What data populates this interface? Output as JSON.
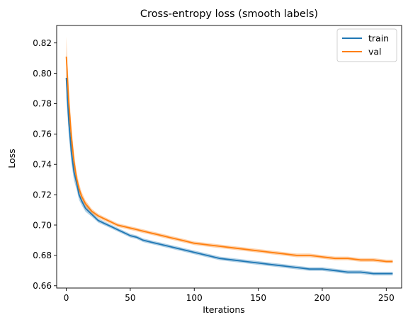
{
  "chart_data": {
    "type": "line",
    "title": "Cross-entropy loss (smooth labels)",
    "xlabel": "Iterations",
    "ylabel": "Loss",
    "xlim": [
      -7.5,
      262
    ],
    "ylim": [
      0.6585,
      0.8315
    ],
    "xticks": [
      0,
      50,
      100,
      150,
      200,
      250
    ],
    "yticks": [
      0.66,
      0.68,
      0.7,
      0.72,
      0.74,
      0.76,
      0.78,
      0.8,
      0.82
    ],
    "grid": false,
    "legend_position": "top-right",
    "series": [
      {
        "name": "train",
        "color": "#1f77b4",
        "band_opacity": 0.35,
        "x": [
          0,
          2,
          4,
          6,
          8,
          10,
          12,
          15,
          20,
          25,
          30,
          35,
          40,
          45,
          50,
          55,
          60,
          65,
          70,
          75,
          80,
          90,
          100,
          110,
          120,
          130,
          140,
          150,
          160,
          170,
          180,
          190,
          200,
          210,
          220,
          230,
          240,
          250,
          255
        ],
        "values": [
          0.797,
          0.768,
          0.748,
          0.735,
          0.728,
          0.72,
          0.716,
          0.711,
          0.707,
          0.703,
          0.701,
          0.699,
          0.697,
          0.695,
          0.693,
          0.692,
          0.69,
          0.689,
          0.688,
          0.687,
          0.686,
          0.684,
          0.682,
          0.68,
          0.678,
          0.677,
          0.676,
          0.675,
          0.674,
          0.673,
          0.672,
          0.671,
          0.671,
          0.67,
          0.669,
          0.669,
          0.668,
          0.668,
          0.668
        ]
      },
      {
        "name": "val",
        "color": "#ff7f0e",
        "band_opacity": 0.35,
        "x": [
          0,
          2,
          4,
          6,
          8,
          10,
          12,
          15,
          20,
          25,
          30,
          35,
          40,
          45,
          50,
          55,
          60,
          65,
          70,
          75,
          80,
          90,
          100,
          110,
          120,
          130,
          140,
          150,
          160,
          170,
          180,
          190,
          200,
          210,
          220,
          230,
          240,
          250,
          255
        ],
        "values": [
          0.811,
          0.78,
          0.758,
          0.742,
          0.731,
          0.724,
          0.719,
          0.714,
          0.709,
          0.706,
          0.704,
          0.702,
          0.7,
          0.699,
          0.698,
          0.697,
          0.696,
          0.695,
          0.694,
          0.693,
          0.692,
          0.69,
          0.688,
          0.687,
          0.686,
          0.685,
          0.684,
          0.683,
          0.682,
          0.681,
          0.68,
          0.68,
          0.679,
          0.678,
          0.678,
          0.677,
          0.677,
          0.676,
          0.676
        ]
      }
    ]
  }
}
